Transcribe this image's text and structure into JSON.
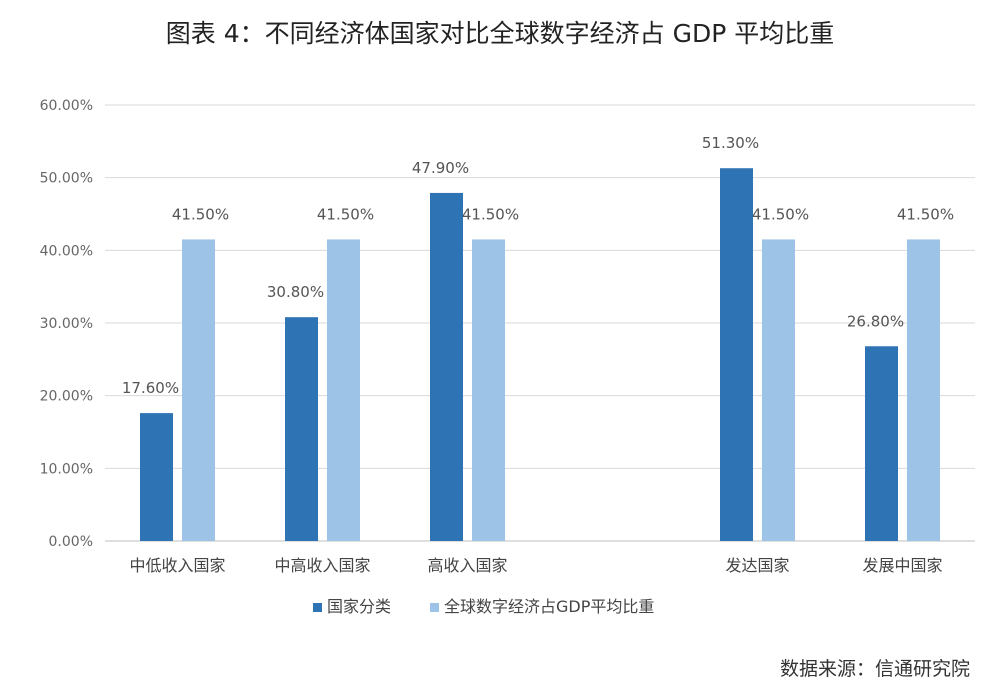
{
  "title": "图表 4：不同经济体国家对比全球数字经济占 GDP 平均比重",
  "source": "数据来源：信通研究院",
  "colors": {
    "series1": "#2e74b5",
    "series2": "#9dc3e6",
    "grid": "#d9d9d9",
    "axis": "#bfbfbf"
  },
  "chart_data": {
    "type": "bar",
    "categories": [
      "中低收入国家",
      "中高收入国家",
      "高收入国家",
      "",
      "发达国家",
      "发展中国家"
    ],
    "series": [
      {
        "name": "国家分类",
        "values": [
          17.6,
          30.8,
          47.9,
          null,
          51.3,
          26.8
        ],
        "labels": [
          "17.60%",
          "30.80%",
          "47.90%",
          "",
          "51.30%",
          "26.80%"
        ]
      },
      {
        "name": "全球数字经济占GDP平均比重",
        "values": [
          41.5,
          41.5,
          41.5,
          null,
          41.5,
          41.5
        ],
        "labels": [
          "41.50%",
          "41.50%",
          "41.50%",
          "",
          "41.50%",
          "41.50%"
        ]
      }
    ],
    "ylim": [
      0,
      60
    ],
    "yticks": [
      "0.00%",
      "10.00%",
      "20.00%",
      "30.00%",
      "40.00%",
      "50.00%",
      "60.00%"
    ],
    "grid": true,
    "legend_position": "bottom"
  }
}
